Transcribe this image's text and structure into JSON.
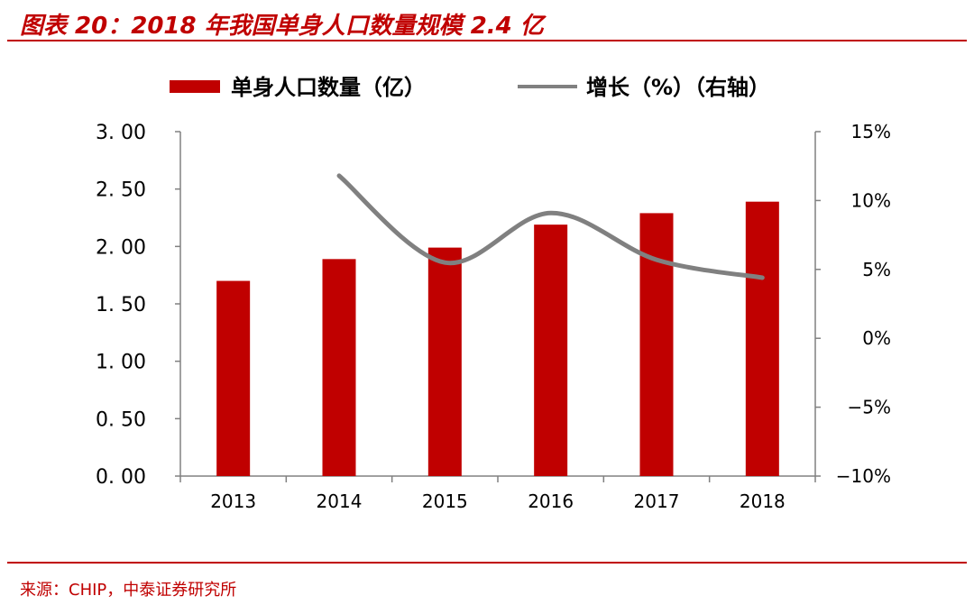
{
  "title": "图表 20：2018 年我国单身人口数量规模 2.4 亿",
  "source": "来源：CHIP，中泰证券研究所",
  "colors": {
    "bar": "#c00000",
    "line": "#808080",
    "accent": "#c00000"
  },
  "chart_data": {
    "type": "bar",
    "categories": [
      "2013",
      "2014",
      "2015",
      "2016",
      "2017",
      "2018"
    ],
    "series": [
      {
        "name": "单身人口数量（亿）",
        "type": "bar",
        "axis": "left",
        "values": [
          1.7,
          1.89,
          1.99,
          2.19,
          2.29,
          2.39
        ]
      },
      {
        "name": "增长（%）（右轴）",
        "type": "line",
        "axis": "right",
        "values": [
          null,
          11.8,
          5.5,
          9.1,
          5.7,
          4.4
        ]
      }
    ],
    "y_left": {
      "lim": [
        0,
        3
      ],
      "ticks": [
        "0. 00",
        "0. 50",
        "1. 00",
        "1. 50",
        "2. 00",
        "2. 50",
        "3. 00"
      ]
    },
    "y_right": {
      "lim": [
        -10,
        15
      ],
      "ticks": [
        "−10%",
        "−5%",
        "0%",
        "5%",
        "10%",
        "15%"
      ]
    },
    "legend_position": "top",
    "grid": false
  }
}
